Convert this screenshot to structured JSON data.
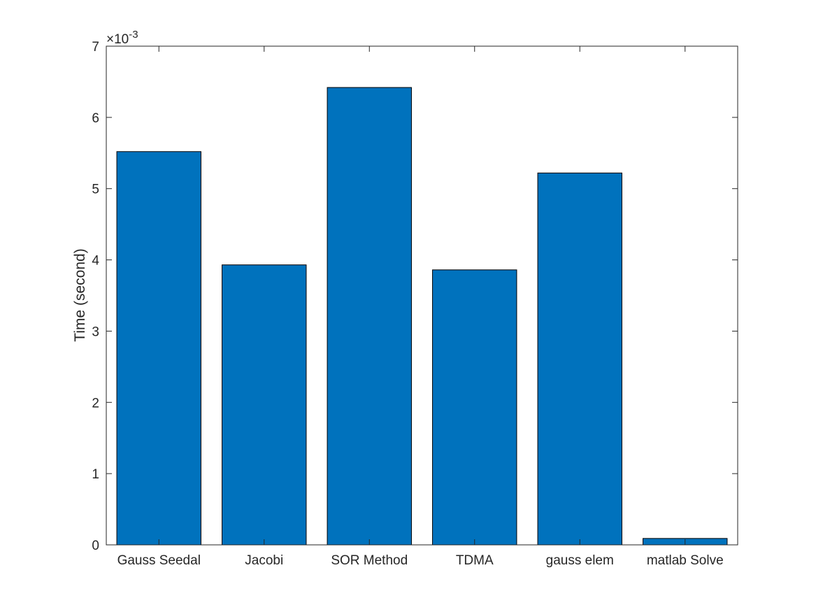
{
  "chart_data": {
    "type": "bar",
    "categories": [
      "Gauss Seedal",
      "Jacobi",
      "SOR Method",
      "TDMA",
      "gauss elem",
      "matlab Solve"
    ],
    "values": [
      0.00552,
      0.00393,
      0.00642,
      0.00386,
      0.00522,
      9e-05
    ],
    "title": "",
    "xlabel": "",
    "ylabel": "Time (second)",
    "ylim": [
      0,
      0.007
    ],
    "yticks": [
      0,
      1,
      2,
      3,
      4,
      5,
      6,
      7
    ],
    "yscale_exponent_label": "×10",
    "yscale_exponent_power": "-3",
    "grid": false,
    "legend": "none",
    "bar_color": "#0072BD",
    "bar_edge_color": "#000000"
  }
}
